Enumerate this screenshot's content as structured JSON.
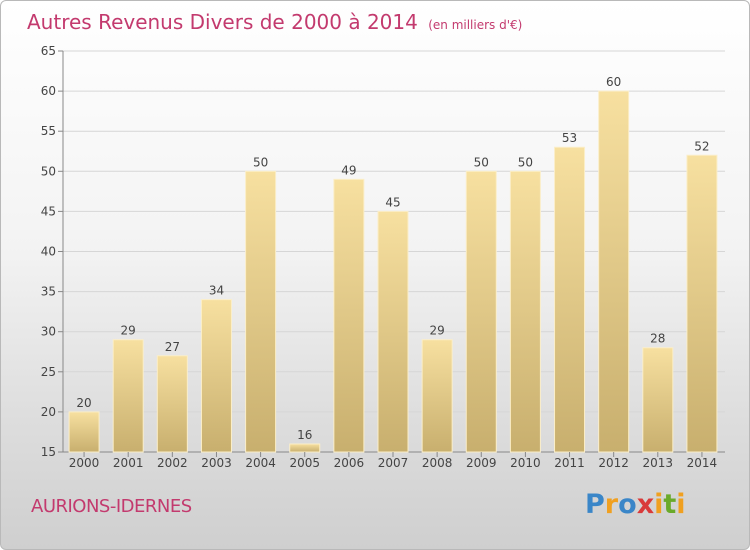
{
  "title": "Autres Revenus Divers de 2000 à 2014",
  "unit": "(en milliers d'€)",
  "town": "AURIONS-IDERNES",
  "logo": "Proxiti",
  "colors": {
    "title": "#c33a6e",
    "bar_light": "#f7e0a0",
    "bar_dark": "#c8af6e",
    "grid": "#d6d6d6"
  },
  "chart_data": {
    "type": "bar",
    "categories": [
      "2000",
      "2001",
      "2002",
      "2003",
      "2004",
      "2005",
      "2006",
      "2007",
      "2008",
      "2009",
      "2010",
      "2011",
      "2012",
      "2013",
      "2014"
    ],
    "values": [
      20,
      29,
      27,
      34,
      50,
      16,
      49,
      45,
      29,
      50,
      50,
      53,
      60,
      28,
      52
    ],
    "ylim": [
      15,
      65
    ],
    "yticks": [
      15,
      20,
      25,
      30,
      35,
      40,
      45,
      50,
      55,
      60,
      65
    ],
    "grid": true
  }
}
